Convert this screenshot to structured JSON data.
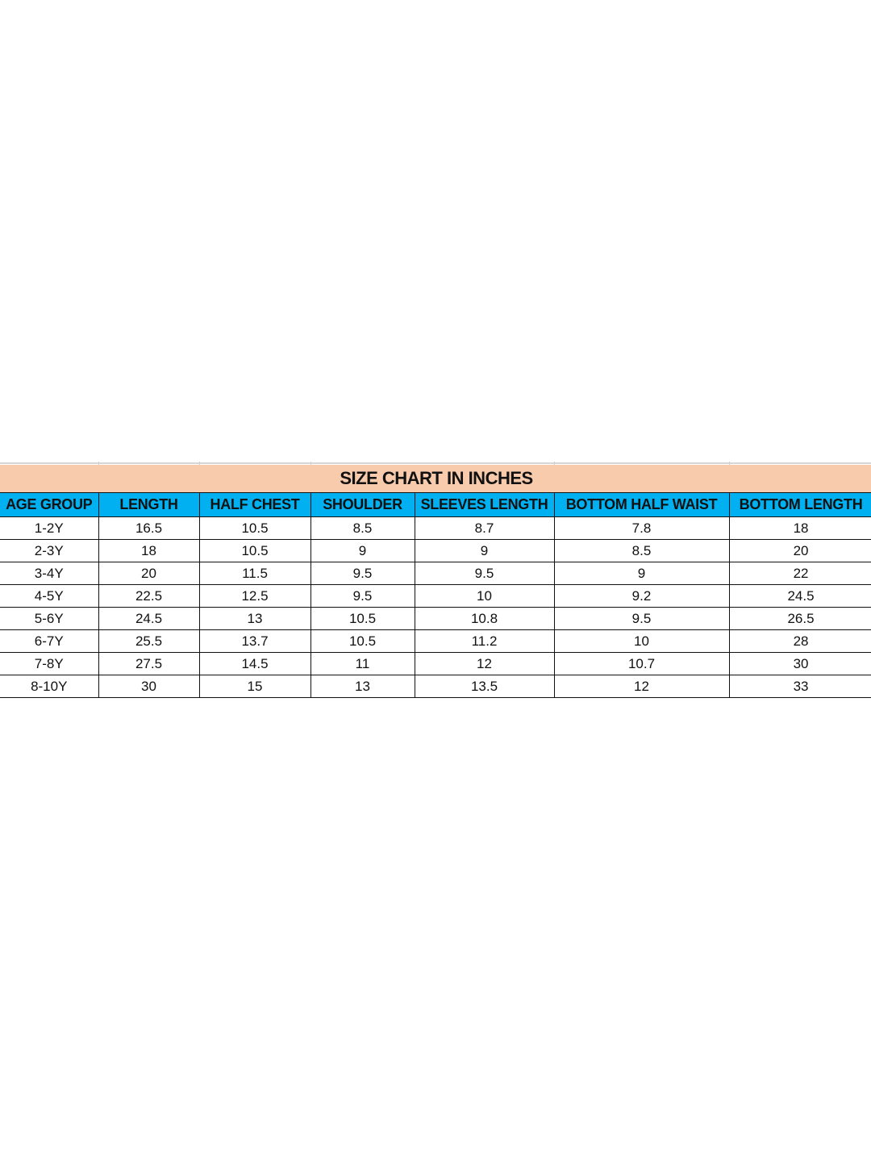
{
  "title": "SIZE CHART IN INCHES",
  "colors": {
    "title_bg": "#f8cbad",
    "header_bg": "#00b0f0"
  },
  "columns": [
    "AGE GROUP",
    "LENGTH",
    "HALF CHEST",
    "SHOULDER",
    "SLEEVES LENGTH",
    "BOTTOM HALF WAIST",
    "BOTTOM LENGTH"
  ],
  "rows": [
    [
      "1-2Y",
      "16.5",
      "10.5",
      "8.5",
      "8.7",
      "7.8",
      "18"
    ],
    [
      "2-3Y",
      "18",
      "10.5",
      "9",
      "9",
      "8.5",
      "20"
    ],
    [
      "3-4Y",
      "20",
      "11.5",
      "9.5",
      "9.5",
      "9",
      "22"
    ],
    [
      "4-5Y",
      "22.5",
      "12.5",
      "9.5",
      "10",
      "9.2",
      "24.5"
    ],
    [
      "5-6Y",
      "24.5",
      "13",
      "10.5",
      "10.8",
      "9.5",
      "26.5"
    ],
    [
      "6-7Y",
      "25.5",
      "13.7",
      "10.5",
      "11.2",
      "10",
      "28"
    ],
    [
      "7-8Y",
      "27.5",
      "14.5",
      "11",
      "12",
      "10.7",
      "30"
    ],
    [
      "8-10Y",
      "30",
      "15",
      "13",
      "13.5",
      "12",
      "33"
    ]
  ]
}
